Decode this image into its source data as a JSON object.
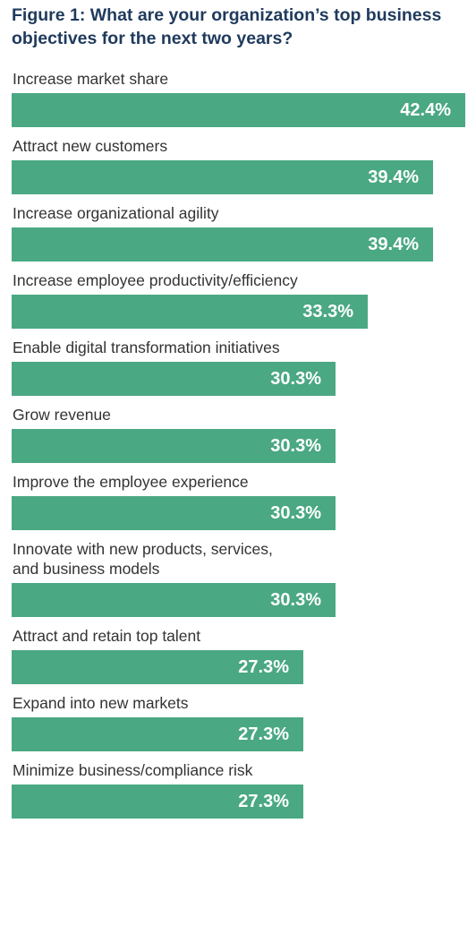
{
  "colors": {
    "bar": "#4aa883",
    "title": "#1f3a5c",
    "label": "#333333",
    "value_text": "#ffffff"
  },
  "chart_data": {
    "type": "bar",
    "orientation": "horizontal",
    "title": "Figure 1: What are your organization’s top business objectives for the next two years?",
    "xlabel": "",
    "ylabel": "",
    "xlim": [
      0,
      42.4
    ],
    "grid": false,
    "legend": "none",
    "value_suffix": "%",
    "categories": [
      "Increase market share",
      "Attract new customers",
      "Increase organizational agility",
      "Increase employee productivity/efficiency",
      "Enable digital transformation initiatives",
      "Grow revenue",
      "Improve the employee experience",
      "Innovate with new products, services,\nand business models",
      "Attract and retain top talent",
      "Expand into new markets",
      "Minimize business/compliance risk"
    ],
    "values": [
      42.4,
      39.4,
      39.4,
      33.3,
      30.3,
      30.3,
      30.3,
      30.3,
      27.3,
      27.3,
      27.3
    ],
    "value_labels": [
      "42.4%",
      "39.4%",
      "39.4%",
      "33.3%",
      "30.3%",
      "30.3%",
      "30.3%",
      "30.3%",
      "27.3%",
      "27.3%",
      "27.3%"
    ]
  }
}
